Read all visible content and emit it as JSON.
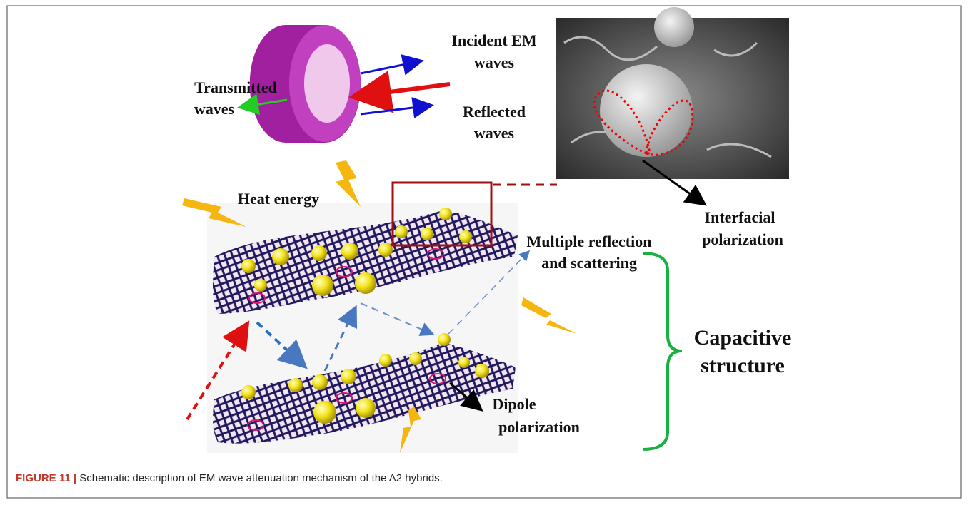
{
  "figure": {
    "labels": {
      "incident": [
        "Incident EM",
        "waves"
      ],
      "transmitted": [
        "Transmitted",
        "waves"
      ],
      "reflected": [
        "Reflected",
        "waves"
      ],
      "heat": "Heat energy",
      "interfacial": [
        "Interfacial",
        "polarization"
      ],
      "multiple": [
        "Multiple reflection",
        "and scattering"
      ],
      "capacitive": [
        "Capacitive",
        "structure"
      ],
      "dipole": [
        "Dipole",
        "polarization"
      ]
    }
  },
  "caption": {
    "label": "FIGURE 11 |",
    "text": "Schematic description of EM wave attenuation mechanism of the A2 hybrids."
  }
}
